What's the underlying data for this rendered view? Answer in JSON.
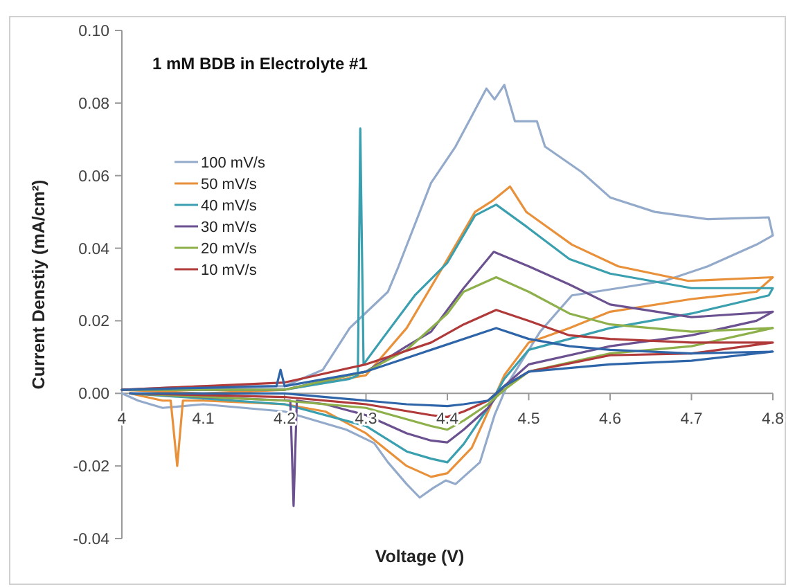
{
  "chart_data": {
    "type": "line",
    "title": "1 mM BDB in Electrolyte #1",
    "xlabel": "Voltage (V)",
    "ylabel": "Current Denstiy (mA/cm²)",
    "xlim": [
      4,
      4.8
    ],
    "xticks": [
      4,
      4.1,
      4.2,
      4.3,
      4.4,
      4.5,
      4.6,
      4.7,
      4.8
    ],
    "ylim": [
      -0.04,
      0.1
    ],
    "yticks": [
      {
        "value": -0.04,
        "label": "-0.04"
      },
      {
        "value": -0.02,
        "label": "-0.02"
      },
      {
        "value": 0,
        "label": "0.00"
      },
      {
        "value": 0.02,
        "label": "0.02"
      },
      {
        "value": 0.04,
        "label": "0.04"
      },
      {
        "value": 0.06,
        "label": "0.06"
      },
      {
        "value": 0.08,
        "label": "0.08"
      },
      {
        "value": 0.1,
        "label": "0.10"
      }
    ],
    "grid": false,
    "legend": "top left",
    "marker": "none",
    "line_style": "solid",
    "series": [
      {
        "name": "100 mV/s",
        "color": "#93aacb",
        "x": [
          4,
          4.1,
          4.2,
          4.247,
          4.28,
          4.327,
          4.34,
          4.38,
          4.41,
          4.448,
          4.458,
          4.47,
          4.483,
          4.51,
          4.52,
          4.565,
          4.6,
          4.655,
          4.72,
          4.795,
          4.8,
          4.78,
          4.72,
          4.667,
          4.553,
          4.514,
          4.475,
          4.458,
          4.44,
          4.41,
          4.398,
          4.383,
          4.366,
          4.35,
          4.327,
          4.31,
          4.276,
          4.2,
          4.1,
          4.05,
          4.02,
          4
        ],
        "values": [
          0.001,
          0.002,
          0.002,
          0.0065,
          0.018,
          0.028,
          0.035,
          0.058,
          0.068,
          0.084,
          0.081,
          0.085,
          0.075,
          0.075,
          0.068,
          0.061,
          0.054,
          0.05,
          0.048,
          0.0485,
          0.0435,
          0.041,
          0.035,
          0.031,
          0.027,
          0.017,
          0.003,
          -0.006,
          -0.019,
          -0.025,
          -0.024,
          -0.026,
          -0.0287,
          -0.025,
          -0.019,
          -0.0137,
          -0.01,
          -0.005,
          -0.003,
          -0.004,
          -0.002,
          0
        ]
      },
      {
        "name": "50 mV/s",
        "color": "#e8913a",
        "x": [
          4,
          4.1,
          4.2,
          4.3,
          4.35,
          4.395,
          4.434,
          4.455,
          4.477,
          4.497,
          4.553,
          4.61,
          4.696,
          4.8,
          4.78,
          4.7,
          4.6,
          4.55,
          4.5,
          4.47,
          4.45,
          4.43,
          4.4,
          4.38,
          4.35,
          4.3,
          4.25,
          4.2,
          4.1,
          4.075,
          4.068,
          4.06,
          4.05,
          4.01
        ],
        "values": [
          0.001,
          0,
          0.001,
          0.005,
          0.018,
          0.035,
          0.05,
          0.053,
          0.057,
          0.05,
          0.041,
          0.035,
          0.031,
          0.032,
          0.028,
          0.026,
          0.0225,
          0.018,
          0.014,
          0.005,
          -0.005,
          -0.015,
          -0.022,
          -0.023,
          -0.02,
          -0.011,
          -0.005,
          -0.003,
          -0.002,
          -0.002,
          -0.02,
          -0.002,
          -0.002,
          0
        ]
      },
      {
        "name": "40 mV/s",
        "color": "#3a9fae",
        "x": [
          4,
          4.2,
          4.28,
          4.29,
          4.293,
          4.297,
          4.32,
          4.36,
          4.4,
          4.434,
          4.46,
          4.497,
          4.55,
          4.6,
          4.7,
          4.8,
          4.795,
          4.7,
          4.6,
          4.5,
          4.47,
          4.45,
          4.42,
          4.4,
          4.38,
          4.35,
          4.3,
          4.2,
          4.01
        ],
        "values": [
          0.001,
          0.001,
          0.004,
          0.005,
          0.073,
          0.008,
          0.015,
          0.027,
          0.036,
          0.049,
          0.052,
          0.046,
          0.037,
          0.033,
          0.029,
          0.029,
          0.027,
          0.022,
          0.018,
          0.012,
          0.004,
          -0.004,
          -0.014,
          -0.019,
          -0.018,
          -0.016,
          -0.009,
          -0.003,
          0
        ]
      },
      {
        "name": "30 mV/s",
        "color": "#6b5190",
        "x": [
          4,
          4.2,
          4.3,
          4.35,
          4.38,
          4.42,
          4.457,
          4.5,
          4.55,
          4.6,
          4.7,
          4.8,
          4.78,
          4.7,
          4.6,
          4.5,
          4.47,
          4.45,
          4.42,
          4.4,
          4.38,
          4.35,
          4.3,
          4.25,
          4.215,
          4.211,
          4.207,
          4.1,
          4.01
        ],
        "values": [
          0.001,
          0.001,
          0.006,
          0.013,
          0.017,
          0.029,
          0.039,
          0.035,
          0.03,
          0.0245,
          0.021,
          0.0225,
          0.02,
          0.016,
          0.013,
          0.008,
          0.002,
          -0.004,
          -0.01,
          -0.0135,
          -0.013,
          -0.011,
          -0.006,
          -0.003,
          -0.002,
          -0.031,
          -0.002,
          -0.001,
          0
        ]
      },
      {
        "name": "20 mV/s",
        "color": "#8db04b",
        "x": [
          4,
          4.2,
          4.3,
          4.35,
          4.4,
          4.42,
          4.46,
          4.5,
          4.55,
          4.6,
          4.7,
          4.8,
          4.7,
          4.6,
          4.5,
          4.47,
          4.45,
          4.42,
          4.4,
          4.38,
          4.3,
          4.2,
          4.01
        ],
        "values": [
          0.001,
          0.001,
          0.006,
          0.012,
          0.022,
          0.028,
          0.032,
          0.028,
          0.022,
          0.019,
          0.017,
          0.018,
          0.013,
          0.011,
          0.006,
          0.001,
          -0.003,
          -0.0075,
          -0.01,
          -0.009,
          -0.004,
          -0.002,
          0
        ]
      },
      {
        "name": "10 mV/s",
        "color": "#b03a3a",
        "x": [
          4,
          4.2,
          4.3,
          4.38,
          4.42,
          4.46,
          4.5,
          4.55,
          4.6,
          4.7,
          4.8,
          4.7,
          4.6,
          4.5,
          4.47,
          4.45,
          4.42,
          4.4,
          4.38,
          4.3,
          4.2,
          4.01
        ],
        "values": [
          0.001,
          0.003,
          0.008,
          0.014,
          0.019,
          0.023,
          0.02,
          0.016,
          0.015,
          0.014,
          0.014,
          0.011,
          0.0105,
          0.006,
          0.002,
          -0.002,
          -0.005,
          -0.0065,
          -0.006,
          -0.003,
          -0.001,
          0
        ]
      },
      {
        "color": "#2e65a8",
        "x": [
          4,
          4.19,
          4.195,
          4.2,
          4.3,
          4.38,
          4.46,
          4.5,
          4.55,
          4.6,
          4.7,
          4.8,
          4.7,
          4.6,
          4.5,
          4.47,
          4.45,
          4.42,
          4.4,
          4.35,
          4.3,
          4.2,
          4.01
        ],
        "values": [
          0.001,
          0.002,
          0.0065,
          0.002,
          0.006,
          0.012,
          0.018,
          0.015,
          0.013,
          0.012,
          0.011,
          0.0115,
          0.009,
          0.008,
          0.006,
          0.002,
          -0.002,
          -0.003,
          -0.0035,
          -0.003,
          -0.002,
          0,
          0
        ]
      }
    ]
  }
}
